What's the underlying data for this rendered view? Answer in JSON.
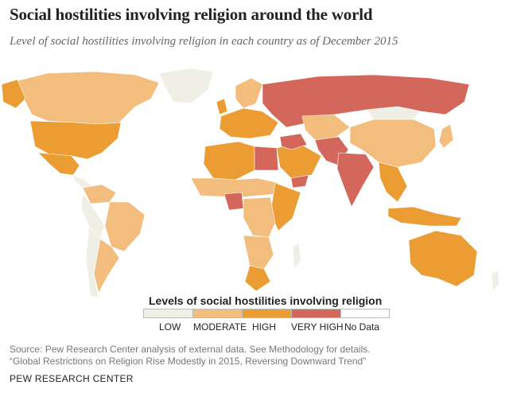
{
  "title": "Social hostilities involving religion around the world",
  "subtitle": "Level of social hostilities involving religion in each country as of December 2015",
  "legend": {
    "title": "Levels of social hostilities involving religion",
    "levels": [
      {
        "label": "LOW",
        "color": "#efefe6"
      },
      {
        "label": "MODERATE",
        "color": "#f3bd7e"
      },
      {
        "label": "HIGH",
        "color": "#eb9c33"
      },
      {
        "label": "VERY HIGH",
        "color": "#d4675b"
      },
      {
        "label": "No Data",
        "color": "#ffffff"
      }
    ]
  },
  "source": {
    "line1": "Source: Pew Research Center analysis of external data. See Methodology for details.",
    "line2": "“Global Restrictions on Religion Rise Modestly in 2015, Reversing Downward Trend”"
  },
  "org": "PEW RESEARCH CENTER",
  "regions": [
    {
      "name": "canada",
      "level": "MODERATE"
    },
    {
      "name": "greenland",
      "level": "LOW"
    },
    {
      "name": "alaska",
      "level": "HIGH"
    },
    {
      "name": "usa",
      "level": "HIGH"
    },
    {
      "name": "mexico",
      "level": "HIGH"
    },
    {
      "name": "central-america",
      "level": "LOW"
    },
    {
      "name": "colombia",
      "level": "MODERATE"
    },
    {
      "name": "brazil",
      "level": "MODERATE"
    },
    {
      "name": "andes",
      "level": "LOW"
    },
    {
      "name": "argentina",
      "level": "MODERATE"
    },
    {
      "name": "chile",
      "level": "LOW"
    },
    {
      "name": "scandinavia",
      "level": "MODERATE"
    },
    {
      "name": "western-europe",
      "level": "HIGH"
    },
    {
      "name": "uk",
      "level": "HIGH"
    },
    {
      "name": "russia",
      "level": "VERY HIGH"
    },
    {
      "name": "north-africa",
      "level": "HIGH"
    },
    {
      "name": "egypt",
      "level": "VERY HIGH"
    },
    {
      "name": "sahel",
      "level": "MODERATE"
    },
    {
      "name": "nigeria",
      "level": "VERY HIGH"
    },
    {
      "name": "central-africa",
      "level": "MODERATE"
    },
    {
      "name": "east-africa",
      "level": "HIGH"
    },
    {
      "name": "southern-africa",
      "level": "MODERATE"
    },
    {
      "name": "south-africa",
      "level": "HIGH"
    },
    {
      "name": "madagascar",
      "level": "LOW"
    },
    {
      "name": "middle-east",
      "level": "HIGH"
    },
    {
      "name": "syria-iraq",
      "level": "VERY HIGH"
    },
    {
      "name": "yemen",
      "level": "VERY HIGH"
    },
    {
      "name": "central-asia",
      "level": "MODERATE"
    },
    {
      "name": "pakistan-afghanistan",
      "level": "VERY HIGH"
    },
    {
      "name": "india",
      "level": "VERY HIGH"
    },
    {
      "name": "china",
      "level": "MODERATE"
    },
    {
      "name": "mongolia",
      "level": "LOW"
    },
    {
      "name": "southeast-asia",
      "level": "HIGH"
    },
    {
      "name": "indonesia",
      "level": "HIGH"
    },
    {
      "name": "japan",
      "level": "MODERATE"
    },
    {
      "name": "australia",
      "level": "HIGH"
    },
    {
      "name": "new-zealand",
      "level": "LOW"
    }
  ]
}
